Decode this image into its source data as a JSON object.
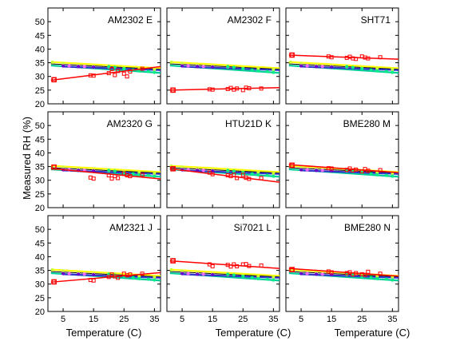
{
  "chart_data": {
    "type": "scatter",
    "layout": "3x3 grid of small multiples sharing axes",
    "xlabel": "Temperature (C)",
    "ylabel": "Measured RH (%)",
    "xlim": [
      0,
      37
    ],
    "ylim": [
      20,
      55
    ],
    "xticks": [
      5,
      15,
      25,
      35
    ],
    "yticks": [
      20,
      25,
      30,
      35,
      40,
      45,
      50
    ],
    "grid": false,
    "reference": {
      "lines": [
        {
          "color": "#ffff00",
          "x": [
            1,
            37
          ],
          "y": [
            35.3,
            33.0
          ]
        },
        {
          "color": "#000000",
          "x": [
            1,
            37
          ],
          "y": [
            34.6,
            32.6
          ]
        },
        {
          "color": "#00cc99",
          "x": [
            1,
            37
          ],
          "y": [
            34.0,
            31.3
          ]
        },
        {
          "color": "#3333cc",
          "x": [
            5,
            37
          ],
          "y": [
            33.6,
            32.3
          ]
        }
      ],
      "markers": [
        {
          "color": "#ccff33",
          "x": [
            1.5,
            5,
            10,
            15,
            20,
            25,
            30,
            35
          ],
          "y": [
            35.2,
            34.8,
            34.2,
            33.8,
            33.5,
            33.0,
            32.8,
            32.6
          ]
        },
        {
          "color": "#00ee88",
          "x": [
            20,
            22,
            25,
            28,
            30,
            33,
            35
          ],
          "y": [
            33.6,
            33.3,
            32.8,
            32.4,
            32.0,
            31.8,
            31.5
          ]
        },
        {
          "color": "#ff66ff",
          "x": [
            5,
            7,
            10,
            12,
            15
          ],
          "y": [
            33.9,
            33.8,
            33.7,
            33.6,
            33.5
          ]
        },
        {
          "color": "#6600cc",
          "x": [
            5,
            10,
            15
          ],
          "y": [
            33.8,
            33.6,
            33.4
          ]
        }
      ]
    },
    "panels": [
      {
        "label": "AM2302 E",
        "points": {
          "x": [
            2,
            14,
            15,
            20,
            21,
            22,
            23,
            25,
            26,
            27,
            31
          ],
          "y": [
            28.8,
            30.4,
            30.3,
            31.2,
            32.7,
            30.5,
            32.0,
            31.0,
            30.0,
            31.8,
            32.8
          ]
        },
        "fit": [
          28.6,
          33.6
        ]
      },
      {
        "label": "AM2302 F",
        "points": {
          "x": [
            2,
            14,
            15,
            20,
            21,
            22,
            23,
            25,
            26,
            27,
            31
          ],
          "y": [
            25.0,
            25.3,
            25.2,
            25.4,
            25.8,
            25.2,
            25.6,
            25.0,
            25.9,
            25.7,
            25.6
          ]
        },
        "fit": [
          25.0,
          25.9
        ]
      },
      {
        "label": "SHT71",
        "points": {
          "x": [
            2,
            14,
            15,
            20,
            21,
            22,
            23,
            25,
            26,
            27,
            31
          ],
          "y": [
            37.8,
            37.3,
            37.0,
            36.8,
            37.2,
            36.6,
            36.4,
            37.3,
            36.9,
            36.6,
            37.0
          ]
        },
        "fit": [
          37.8,
          36.3
        ]
      },
      {
        "label": "AM2320 G",
        "points": {
          "x": [
            2,
            14,
            15,
            20,
            21,
            22,
            23,
            25,
            26,
            27,
            31
          ],
          "y": [
            34.8,
            31.0,
            30.6,
            31.8,
            30.6,
            31.5,
            30.8,
            32.5,
            31.8,
            31.5,
            32.0
          ]
        },
        "fit": [
          34.3,
          30.5
        ]
      },
      {
        "label": "HTU21D K",
        "points": {
          "x": [
            2,
            14,
            15,
            20,
            21,
            22,
            23,
            25,
            26,
            27,
            31
          ],
          "y": [
            34.2,
            32.8,
            32.2,
            31.8,
            31.5,
            32.0,
            30.8,
            32.0,
            30.9,
            30.5,
            30.8
          ]
        },
        "fit": [
          34.2,
          29.3
        ]
      },
      {
        "label": "BME280 M",
        "points": {
          "x": [
            2,
            14,
            15,
            20,
            21,
            22,
            23,
            25,
            26,
            27,
            31
          ],
          "y": [
            35.5,
            34.4,
            34.3,
            33.8,
            34.3,
            33.6,
            33.9,
            33.2,
            34.1,
            33.5,
            33.7
          ]
        },
        "fit": [
          35.7,
          32.8
        ]
      },
      {
        "label": "AM2321 J",
        "points": {
          "x": [
            2,
            14,
            15,
            20,
            21,
            22,
            23,
            25,
            26,
            27,
            31
          ],
          "y": [
            30.8,
            31.5,
            31.3,
            32.6,
            33.5,
            32.8,
            32.3,
            33.8,
            33.2,
            33.5,
            33.8
          ]
        },
        "fit": [
          30.7,
          34.2
        ]
      },
      {
        "label": "Si7021 L",
        "points": {
          "x": [
            2,
            14,
            15,
            20,
            21,
            22,
            23,
            25,
            26,
            27,
            31
          ],
          "y": [
            38.5,
            37.2,
            36.5,
            37.0,
            36.4,
            37.2,
            36.5,
            37.2,
            37.3,
            36.6,
            36.8
          ]
        },
        "fit": [
          38.5,
          35.7
        ]
      },
      {
        "label": "BME280 N",
        "points": {
          "x": [
            2,
            14,
            15,
            20,
            21,
            22,
            23,
            25,
            26,
            27,
            31
          ],
          "y": [
            35.3,
            34.6,
            34.3,
            34.0,
            34.3,
            33.5,
            34.0,
            33.6,
            33.4,
            34.5,
            33.8
          ]
        },
        "fit": [
          35.7,
          32.9
        ]
      }
    ],
    "measured_color": "#ff0000"
  }
}
